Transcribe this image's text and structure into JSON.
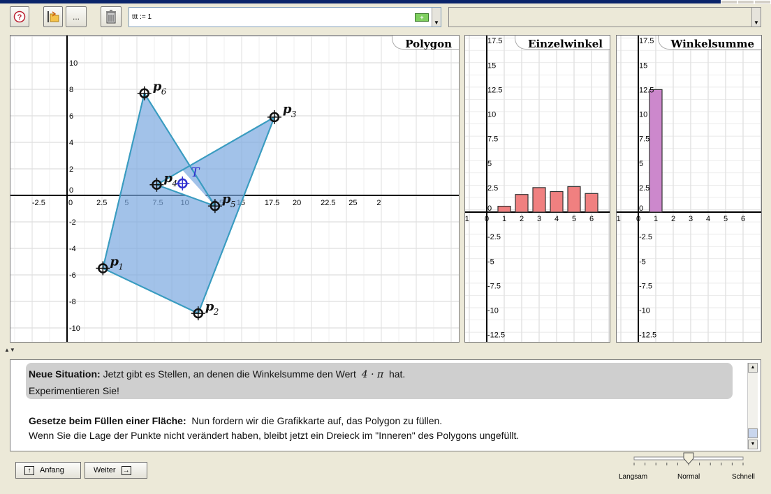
{
  "toolbar": {
    "help_icon": "question-icon",
    "open_icon": "open-folder-icon",
    "more_label": "...",
    "delete_icon": "trash-icon",
    "command_value": "ttt := 1",
    "add_icon": "plus-icon",
    "add_label": "+"
  },
  "panels": {
    "polygon_title": "Polygon",
    "angles_title": "Einzelwinkel",
    "sum_title": "Winkelsumme"
  },
  "polygon": {
    "x_ticks": [
      "-2.5",
      "0",
      "2.5",
      "5",
      "7.5",
      "10",
      "12.5",
      "15",
      "17.5",
      "20",
      "22.5",
      "25",
      "2"
    ],
    "y_ticks": [
      "10",
      "8",
      "6",
      "4",
      "2",
      "0",
      "-2",
      "-4",
      "-6",
      "-8",
      "-10"
    ],
    "points": [
      {
        "label": "p",
        "sub": "1",
        "x": 3.2,
        "y": -5.5
      },
      {
        "label": "p",
        "sub": "2",
        "x": 11.7,
        "y": -8.9
      },
      {
        "label": "p",
        "sub": "3",
        "x": 18.5,
        "y": 5.9
      },
      {
        "label": "p",
        "sub": "4",
        "x": 8.0,
        "y": 0.8
      },
      {
        "label": "p",
        "sub": "5",
        "x": 13.2,
        "y": -0.8
      },
      {
        "label": "p",
        "sub": "6",
        "x": 6.9,
        "y": 7.7
      }
    ],
    "point_T": {
      "label": "T",
      "x": 10.3,
      "y": 0.9
    }
  },
  "chart_data": [
    {
      "type": "bar",
      "title": "Einzelwinkel",
      "x": [
        1,
        2,
        3,
        4,
        5,
        6
      ],
      "values": [
        0.6,
        1.8,
        2.5,
        2.1,
        2.6,
        1.9
      ],
      "x_ticks": [
        "-1",
        "0",
        "1",
        "2",
        "3",
        "4",
        "5",
        "6"
      ],
      "y_ticks": [
        "17.5",
        "15",
        "12.5",
        "10",
        "7.5",
        "5",
        "2.5",
        "0",
        "-2.5",
        "-5",
        "-7.5",
        "-10",
        "-12.5"
      ],
      "color": "#f08080"
    },
    {
      "type": "bar",
      "title": "Winkelsumme",
      "x": [
        1
      ],
      "values": [
        12.5
      ],
      "x_ticks": [
        "-1",
        "0",
        "1",
        "2",
        "3",
        "4",
        "5",
        "6"
      ],
      "y_ticks": [
        "17.5",
        "15",
        "12.5",
        "10",
        "7.5",
        "5",
        "2.5",
        "0",
        "-2.5",
        "-5",
        "-7.5",
        "-10",
        "-12.5"
      ],
      "color": "#cc88cc"
    }
  ],
  "text": {
    "situation_bold": "Neue Situation:",
    "situation_text": "Jetzt gibt es Stellen, an denen die Winkelsumme den Wert",
    "situation_formula": "4 · π",
    "situation_end": "hat.",
    "experiment": "Experimentieren Sie!",
    "laws_bold": "Gesetze beim Füllen einer Fläche:",
    "laws_text": "Nun fordern wir die Grafikkarte auf, das Polygon zu füllen.",
    "laws_line2": "Wenn Sie die Lage der Punkte nicht verändert haben, bleibt jetzt ein Dreieck im \"Inneren\" des Polygons ungefüllt."
  },
  "nav": {
    "start_label": "Anfang",
    "next_label": "Weiter"
  },
  "speed": {
    "slow": "Langsam",
    "normal": "Normal",
    "fast": "Schnell",
    "value": 0.5
  }
}
